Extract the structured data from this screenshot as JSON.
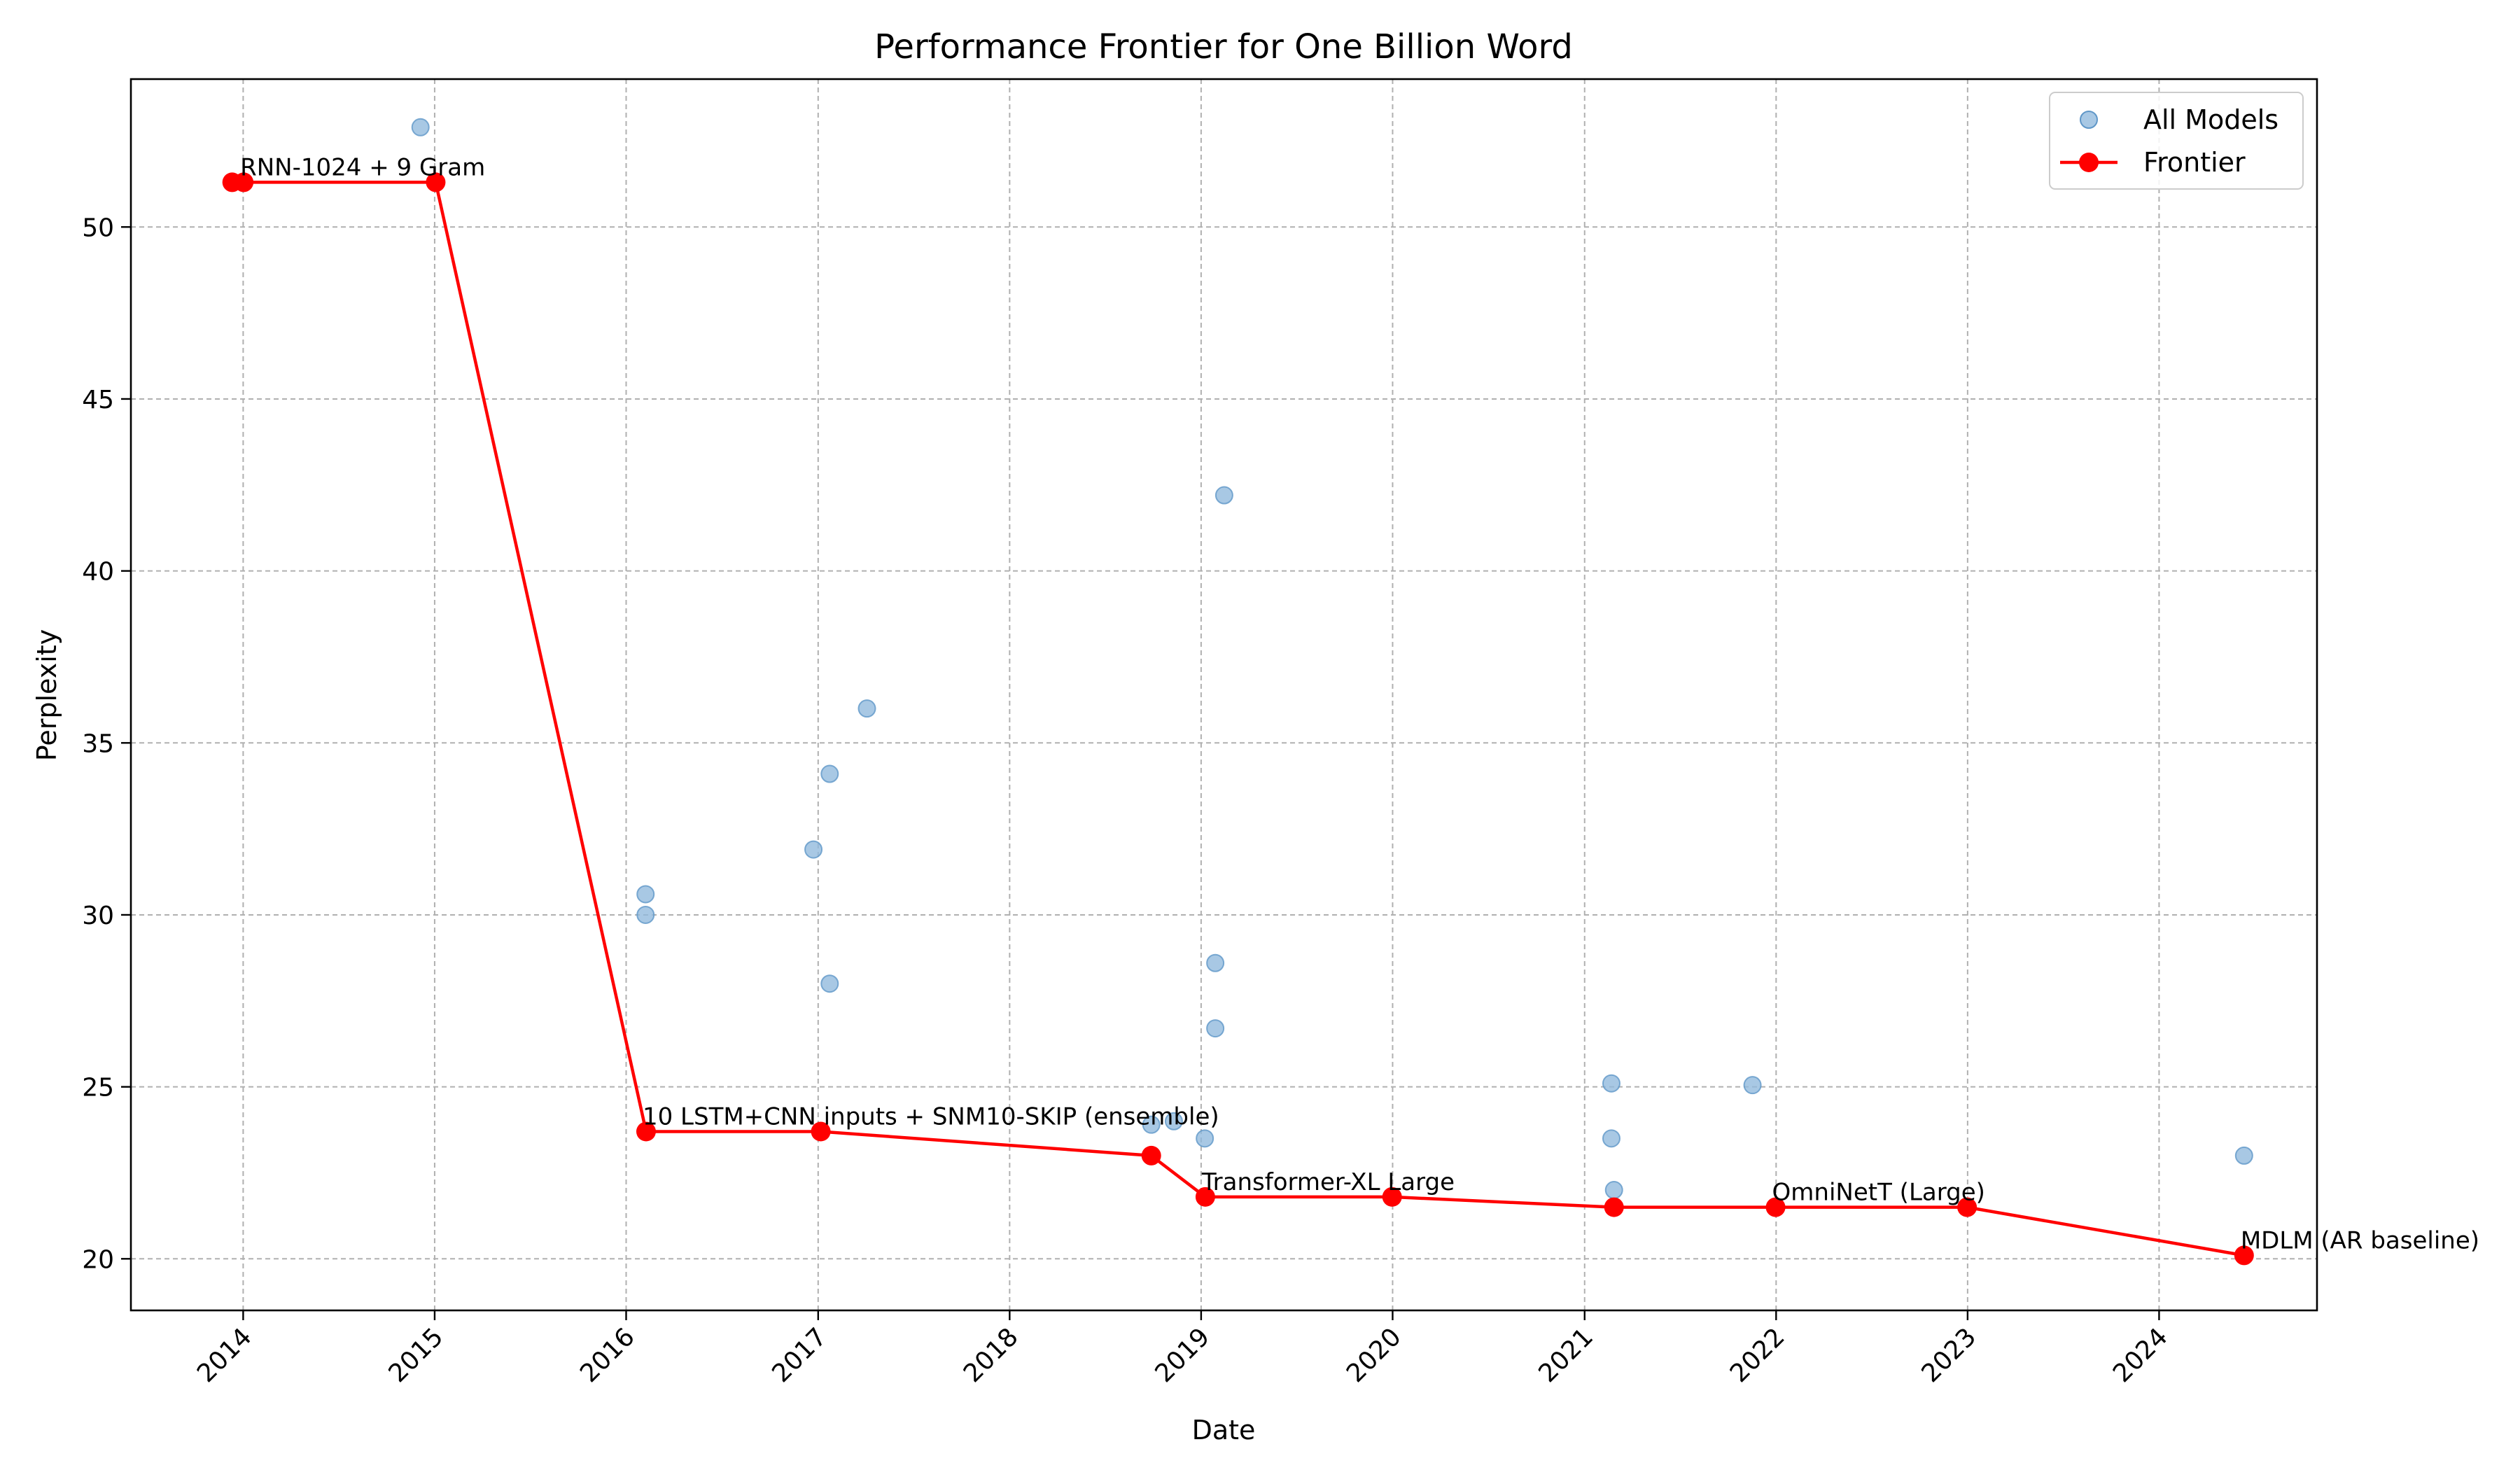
{
  "chart_data": {
    "type": "scatter",
    "title": "Performance Frontier for One Billion Word",
    "xlabel": "Date",
    "ylabel": "Perplexity",
    "xlim": [
      "2013-06-01",
      "2024-10-28"
    ],
    "ylim": [
      18.5,
      54.3
    ],
    "x_ticks": [
      "2014",
      "2015",
      "2016",
      "2017",
      "2018",
      "2019",
      "2020",
      "2021",
      "2022",
      "2023",
      "2024"
    ],
    "y_ticks": [
      20,
      25,
      30,
      35,
      40,
      45,
      50
    ],
    "grid": true,
    "legend_position": "top-right",
    "colors": {
      "all_models": "#8fb8dc",
      "all_models_edge": "#5f97c8",
      "frontier": "#ff0000"
    },
    "series": [
      {
        "name": "All Models",
        "kind": "scatter",
        "points": [
          {
            "x": "2013-12-11",
            "y": 51.3
          },
          {
            "x": "2014-01-02",
            "y": 51.3
          },
          {
            "x": "2014-12-05",
            "y": 52.9
          },
          {
            "x": "2015-01-03",
            "y": 51.3
          },
          {
            "x": "2016-02-07",
            "y": 30.6
          },
          {
            "x": "2016-02-07",
            "y": 30.0
          },
          {
            "x": "2016-02-08",
            "y": 23.7
          },
          {
            "x": "2016-12-23",
            "y": 31.9
          },
          {
            "x": "2017-01-06",
            "y": 23.7
          },
          {
            "x": "2017-01-23",
            "y": 34.1
          },
          {
            "x": "2017-01-23",
            "y": 28.0
          },
          {
            "x": "2017-04-04",
            "y": 36.0
          },
          {
            "x": "2018-09-28",
            "y": 23.9
          },
          {
            "x": "2018-09-28",
            "y": 23.0
          },
          {
            "x": "2018-11-10",
            "y": 24.0
          },
          {
            "x": "2019-01-08",
            "y": 23.5
          },
          {
            "x": "2019-01-09",
            "y": 21.8
          },
          {
            "x": "2019-01-28",
            "y": 28.6
          },
          {
            "x": "2019-01-28",
            "y": 26.7
          },
          {
            "x": "2019-02-14",
            "y": 42.2
          },
          {
            "x": "2019-12-31",
            "y": 21.8
          },
          {
            "x": "2021-02-21",
            "y": 25.1
          },
          {
            "x": "2021-02-21",
            "y": 23.5
          },
          {
            "x": "2021-02-26",
            "y": 22.0
          },
          {
            "x": "2021-02-26",
            "y": 21.5
          },
          {
            "x": "2021-11-17",
            "y": 25.05
          },
          {
            "x": "2021-12-31",
            "y": 21.5
          },
          {
            "x": "2022-12-31",
            "y": 21.5
          },
          {
            "x": "2024-06-11",
            "y": 23.0
          },
          {
            "x": "2024-06-11",
            "y": 20.1
          }
        ]
      },
      {
        "name": "Frontier",
        "kind": "line",
        "points": [
          {
            "x": "2013-12-11",
            "y": 51.3
          },
          {
            "x": "2014-01-02",
            "y": 51.3
          },
          {
            "x": "2015-01-03",
            "y": 51.3
          },
          {
            "x": "2016-02-08",
            "y": 23.7
          },
          {
            "x": "2017-01-06",
            "y": 23.7
          },
          {
            "x": "2018-09-28",
            "y": 23.0
          },
          {
            "x": "2019-01-09",
            "y": 21.8
          },
          {
            "x": "2019-12-31",
            "y": 21.8
          },
          {
            "x": "2021-02-26",
            "y": 21.5
          },
          {
            "x": "2021-12-31",
            "y": 21.5
          },
          {
            "x": "2022-12-31",
            "y": 21.5
          },
          {
            "x": "2024-06-11",
            "y": 20.1
          }
        ]
      }
    ],
    "annotations": [
      {
        "text": "RNN-1024 + 9 Gram",
        "x": "2014-01-02",
        "y": 51.3
      },
      {
        "text": "10 LSTM+CNN inputs + SNM10-SKIP (ensemble)",
        "x": "2016-02-08",
        "y": 23.7
      },
      {
        "text": "Transformer-XL Large",
        "x": "2019-01-09",
        "y": 21.8
      },
      {
        "text": "OmniNetT (Large)",
        "x": "2021-12-31",
        "y": 21.5
      },
      {
        "text": "MDLM (AR baseline)",
        "x": "2024-06-11",
        "y": 20.1
      }
    ]
  }
}
